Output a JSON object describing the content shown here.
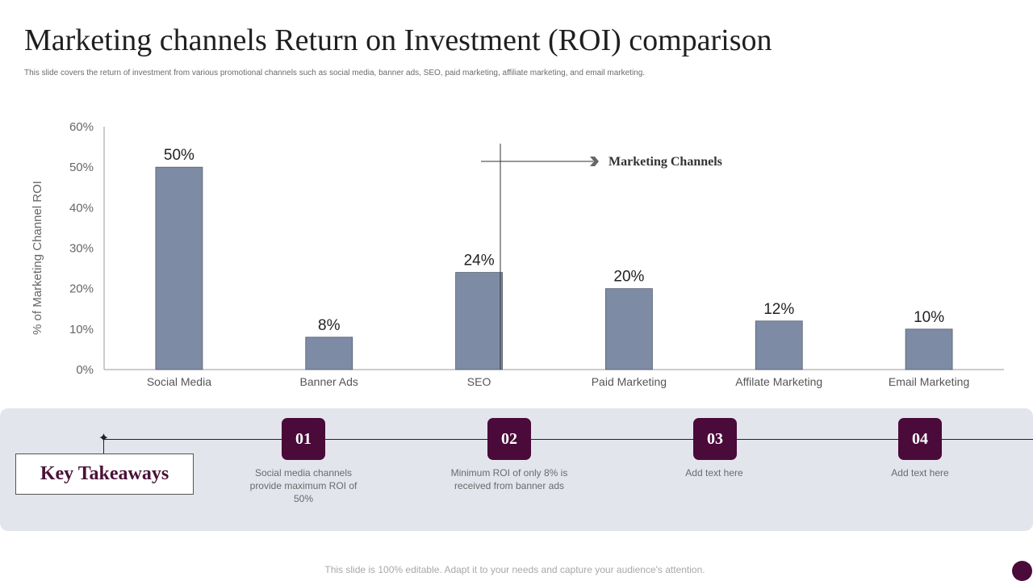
{
  "header": {
    "title": "Marketing channels Return on Investment (ROI) comparison",
    "subtitle": "This slide covers the return of investment from various promotional channels such as social media, banner ads, SEO, paid marketing, affiliate marketing, and email marketing."
  },
  "chart_data": {
    "type": "bar",
    "categories": [
      "Social Media",
      "Banner Ads",
      "SEO",
      "Paid Marketing",
      "Affilate Marketing",
      "Email Marketing"
    ],
    "values": [
      50,
      8,
      24,
      20,
      12,
      10
    ],
    "data_labels": [
      "50%",
      "8%",
      "24%",
      "20%",
      "12%",
      "10%"
    ],
    "ylabel": "% of Marketing Channel ROI",
    "xlabel": "",
    "ylim": [
      0,
      60
    ],
    "yticks": [
      0,
      10,
      20,
      30,
      40,
      50,
      60
    ],
    "ytick_labels": [
      "0%",
      "10%",
      "20%",
      "30%",
      "40%",
      "50%",
      "60%"
    ],
    "bar_color": "#7e8ba5",
    "annotation": "Marketing Channels",
    "grid": false
  },
  "takeaways": {
    "title": "Key Takeaways",
    "items": [
      {
        "number": "01",
        "text": "Social media channels provide maximum ROI of 50%"
      },
      {
        "number": "02",
        "text": "Minimum ROI of only 8% is received from banner ads"
      },
      {
        "number": "03",
        "text": "Add text here"
      },
      {
        "number": "04",
        "text": "Add text here"
      }
    ]
  },
  "footer": {
    "text": "This slide is 100% editable. Adapt it to your needs and capture your audience's attention."
  },
  "colors": {
    "accent": "#4a0a3a",
    "bar": "#7e8ba5",
    "panel": "#e3e5ec"
  }
}
